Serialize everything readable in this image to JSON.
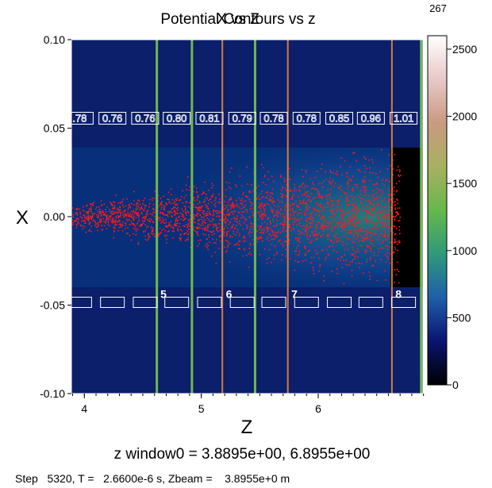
{
  "chart_data": {
    "type": "heatmap",
    "title_overlapped": [
      "Potential Contours vs z",
      "X vs Z"
    ],
    "xlabel": "Z",
    "ylabel": "X",
    "xlim": [
      3.8895,
      6.8955
    ],
    "ylim": [
      -0.1,
      0.1
    ],
    "x_ticks": [
      {
        "value": 4,
        "label": "4"
      },
      {
        "value": 5,
        "label": "5"
      },
      {
        "value": 6,
        "label": "6"
      }
    ],
    "y_ticks": [
      {
        "value": 0.1,
        "label": "0.10"
      },
      {
        "value": 0.05,
        "label": "0.05"
      },
      {
        "value": 0.0,
        "label": "0.00"
      },
      {
        "value": -0.05,
        "label": "-0.05"
      },
      {
        "value": -0.1,
        "label": "-0.10"
      }
    ],
    "colorbar": {
      "top_label": "267",
      "range": [
        0,
        2600
      ],
      "ticks": [
        {
          "value": 0,
          "label": "0"
        },
        {
          "value": 500,
          "label": "500"
        },
        {
          "value": 1000,
          "label": "1000"
        },
        {
          "value": 1500,
          "label": "1500"
        },
        {
          "value": 2000,
          "label": "2000"
        },
        {
          "value": 2500,
          "label": "2500"
        }
      ],
      "colors": [
        "#000000",
        "#0a1470",
        "#1f5fa8",
        "#2e9a7a",
        "#66b84a",
        "#a8b060",
        "#c89a80",
        "#e8c8c8",
        "#ffffff"
      ]
    },
    "colors": {
      "background": "#0b1f6b",
      "beam_region": "#08307a",
      "particles": "#ff1a1a",
      "green_element": "#6fb84c",
      "orange_element": "#d97a3a",
      "label_box": "#ffffff"
    },
    "element_lines": [
      {
        "z": 4.62,
        "color": "green"
      },
      {
        "z": 4.92,
        "color": "green"
      },
      {
        "z": 5.18,
        "color": "orange"
      },
      {
        "z": 5.46,
        "color": "green"
      },
      {
        "z": 5.74,
        "color": "orange"
      },
      {
        "z": 6.63,
        "color": "orange"
      },
      {
        "z": 6.88,
        "color": "green"
      }
    ],
    "gap_labels_top": [
      {
        "z": 3.96,
        "label": ".78"
      },
      {
        "z": 4.24,
        "label": "0.76"
      },
      {
        "z": 4.52,
        "label": "0.76"
      },
      {
        "z": 4.79,
        "label": "0.80"
      },
      {
        "z": 5.07,
        "label": "0.81"
      },
      {
        "z": 5.35,
        "label": "0.79"
      },
      {
        "z": 5.62,
        "label": "0.78"
      },
      {
        "z": 5.9,
        "label": "0.78"
      },
      {
        "z": 6.18,
        "label": "0.85"
      },
      {
        "z": 6.45,
        "label": "0.96"
      },
      {
        "z": 6.73,
        "label": "1.01"
      }
    ],
    "gap_boxes_bottom_z": [
      3.96,
      4.24,
      4.52,
      4.79,
      5.07,
      5.35,
      5.62,
      5.9,
      6.18,
      6.45,
      6.73
    ],
    "cell_number_labels": [
      {
        "z": 4.65,
        "label": "5"
      },
      {
        "z": 5.21,
        "label": "6"
      },
      {
        "z": 5.77,
        "label": "7"
      },
      {
        "z": 6.66,
        "label": "8"
      }
    ],
    "grid": false
  },
  "footer": {
    "window_line": "z window0 = 3.8895e+00, 6.8955e+00",
    "step_line": "Step   5320, T =   2.6600e-6 s, Zbeam =    3.8955e+0 m"
  }
}
